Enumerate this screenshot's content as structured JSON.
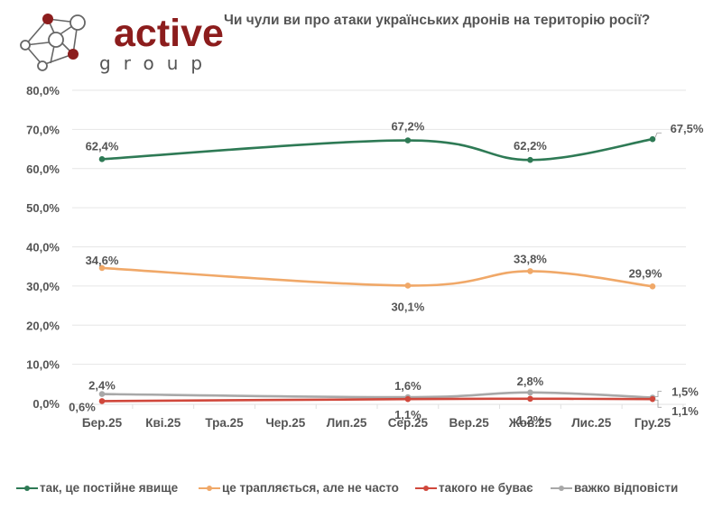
{
  "brand": {
    "name": "active",
    "sub": "group",
    "color_primary": "#8c1d1d",
    "color_secondary": "#555555"
  },
  "chart_data": {
    "type": "line",
    "title": "Чи чули ви про атаки українських дронів на територію росії?",
    "xlabel": "",
    "ylabel": "",
    "categories": [
      "Бер.25",
      "Кві.25",
      "Тра.25",
      "Чер.25",
      "Лип.25",
      "Сер.25",
      "Вер.25",
      "Жов.25",
      "Лис.25",
      "Гру.25"
    ],
    "ylim": [
      0,
      80
    ],
    "yticks": [
      0,
      10,
      20,
      30,
      40,
      50,
      60,
      70,
      80
    ],
    "ytick_labels": [
      "0,0%",
      "10,0%",
      "20,0%",
      "30,0%",
      "40,0%",
      "50,0%",
      "60,0%",
      "70,0%",
      "80,0%"
    ],
    "grid": true,
    "smooth": true,
    "legend_position": "bottom",
    "series": [
      {
        "name": "так, це постійне явище",
        "color": "#2e7a55",
        "points": [
          {
            "category": "Бер.25",
            "value": 62.4,
            "label": "62,4%"
          },
          {
            "category": "Сер.25",
            "value": 67.2,
            "label": "67,2%"
          },
          {
            "category": "Жов.25",
            "value": 62.2,
            "label": "62,2%"
          },
          {
            "category": "Гру.25",
            "value": 67.5,
            "label": "67,5%"
          }
        ]
      },
      {
        "name": "це трапляється, але не часто",
        "color": "#f0a868",
        "points": [
          {
            "category": "Бер.25",
            "value": 34.6,
            "label": "34,6%"
          },
          {
            "category": "Сер.25",
            "value": 30.1,
            "label": "30,1%"
          },
          {
            "category": "Жов.25",
            "value": 33.8,
            "label": "33,8%"
          },
          {
            "category": "Гру.25",
            "value": 29.9,
            "label": "29,9%"
          }
        ]
      },
      {
        "name": "такого не буває",
        "color": "#d0483c",
        "points": [
          {
            "category": "Бер.25",
            "value": 0.6,
            "label": "0,6%"
          },
          {
            "category": "Сер.25",
            "value": 1.1,
            "label": "1,1%"
          },
          {
            "category": "Жов.25",
            "value": 1.2,
            "label": "1,2%"
          },
          {
            "category": "Гру.25",
            "value": 1.1,
            "label": "1,1%"
          }
        ]
      },
      {
        "name": "важко відповісти",
        "color": "#a8a8a8",
        "points": [
          {
            "category": "Бер.25",
            "value": 2.4,
            "label": "2,4%"
          },
          {
            "category": "Сер.25",
            "value": 1.6,
            "label": "1,6%"
          },
          {
            "category": "Жов.25",
            "value": 2.8,
            "label": "2,8%"
          },
          {
            "category": "Гру.25",
            "value": 1.5,
            "label": "1,5%"
          }
        ]
      }
    ]
  }
}
